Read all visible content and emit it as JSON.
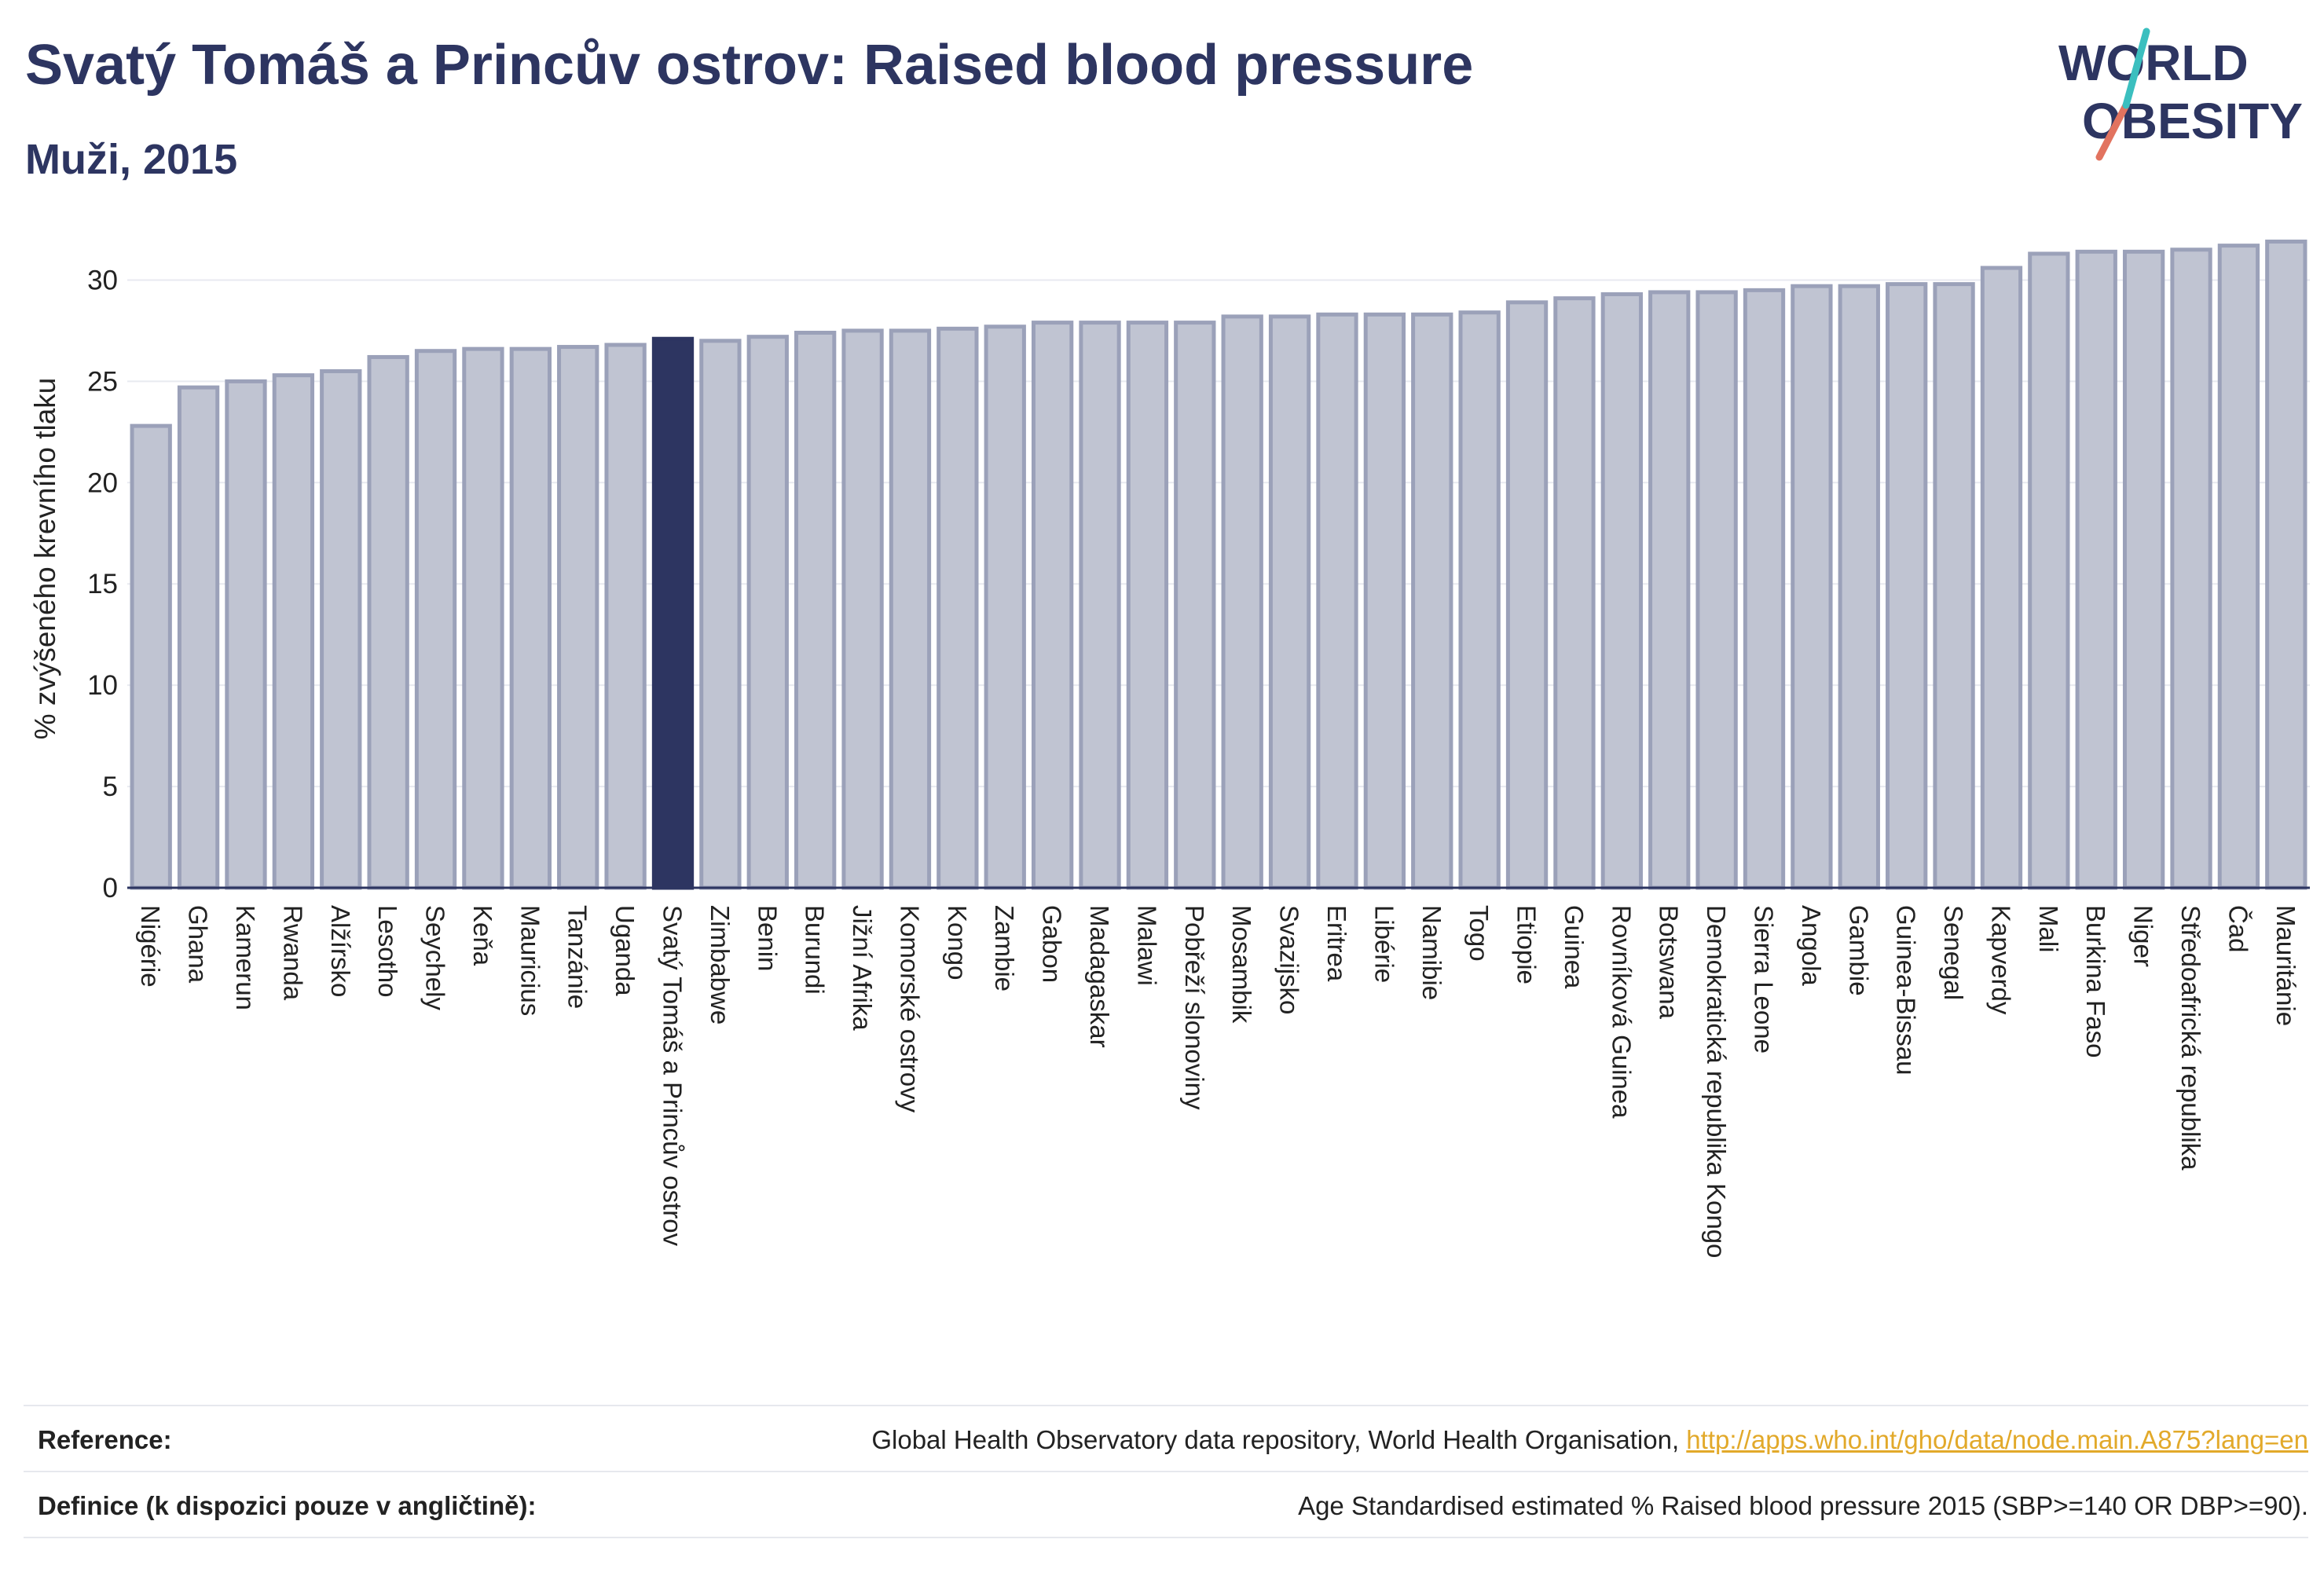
{
  "header": {
    "title": "Svatý Tomáš a Princův ostrov: Raised blood pressure",
    "subtitle": "Muži, 2015"
  },
  "logo": {
    "line1": "WORLD",
    "line2": "OBESITY"
  },
  "chart_data": {
    "type": "bar",
    "ylabel": "% zvýšeného krevního tlaku",
    "xlabel": "",
    "ylim": [
      0,
      32.5
    ],
    "yticks": [
      0,
      5,
      10,
      15,
      20,
      25,
      30
    ],
    "grid": "horizontal",
    "highlight": "Svatý Tomáš a Princův ostrov",
    "colors": {
      "bar_fill": "#c0c4d2",
      "bar_stroke": "#9ba1b9",
      "highlight_fill": "#2d3561",
      "axis": "#2d3561",
      "grid": "#e8eaf0"
    },
    "categories": [
      "Nigérie",
      "Ghana",
      "Kamerun",
      "Rwanda",
      "Alžírsko",
      "Lesotho",
      "Seychely",
      "Keňa",
      "Mauricius",
      "Tanzánie",
      "Uganda",
      "Svatý Tomáš a Princův ostrov",
      "Zimbabwe",
      "Benin",
      "Burundi",
      "Jižní Afrika",
      "Komorské ostrovy",
      "Kongo",
      "Zambie",
      "Gabon",
      "Madagaskar",
      "Malawi",
      "Pobřeží slonoviny",
      "Mosambik",
      "Svazijsko",
      "Eritrea",
      "Libérie",
      "Namibie",
      "Togo",
      "Etiopie",
      "Guinea",
      "Rovníková Guinea",
      "Botswana",
      "Demokratická republika Kongo",
      "Sierra Leone",
      "Angola",
      "Gambie",
      "Guinea-Bissau",
      "Senegal",
      "Kapverdy",
      "Mali",
      "Burkina Faso",
      "Niger",
      "Středoafrická republika",
      "Čad",
      "Mauritánie"
    ],
    "values": [
      22.8,
      24.7,
      25.0,
      25.3,
      25.5,
      26.2,
      26.5,
      26.6,
      26.6,
      26.7,
      26.8,
      27.1,
      27.0,
      27.2,
      27.4,
      27.5,
      27.5,
      27.6,
      27.7,
      27.9,
      27.9,
      27.9,
      27.9,
      28.2,
      28.2,
      28.3,
      28.3,
      28.3,
      28.4,
      28.9,
      29.1,
      29.3,
      29.4,
      29.4,
      29.5,
      29.7,
      29.7,
      29.8,
      29.8,
      30.6,
      31.3,
      31.4,
      31.4,
      31.5,
      31.7,
      31.9
    ]
  },
  "reference": {
    "label": "Reference:",
    "text": "Global Health Observatory data repository, World Health Organisation, ",
    "link": "http://apps.who.int/gho/data/node.main.A875?lang=en"
  },
  "definition": {
    "label": "Definice (k dispozici pouze v angličtině):",
    "text": "Age Standardised estimated % Raised blood pressure 2015 (SBP>=140 OR DBP>=90)."
  }
}
